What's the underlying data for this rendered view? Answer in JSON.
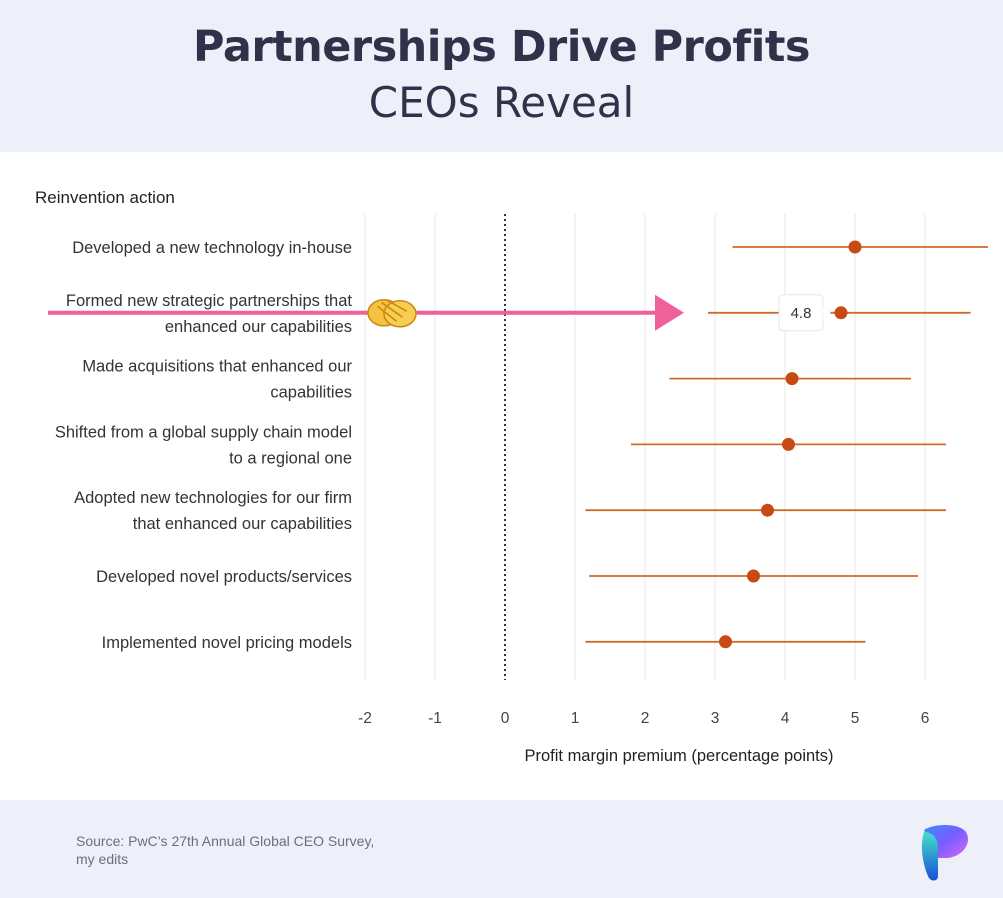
{
  "header": {
    "title": "Partnerships Drive Profits",
    "subtitle": "CEOs Reveal"
  },
  "footer": {
    "source_line1": "Source: PwC’s 27th Annual Global CEO Survey,",
    "source_line2": "my edits"
  },
  "annotation": {
    "callout_value": "4.8",
    "highlight_icon": "handshake-icon",
    "arrow_color": "#f0609a"
  },
  "colors": {
    "point": "#c84a12",
    "error_bar": "#d06a2a",
    "header_bg": "#eef0f9",
    "title": "#30324a"
  },
  "chart_data": {
    "type": "scatter",
    "subtype": "dot-and-whisker",
    "title": "",
    "category_axis_title": "Reinvention action",
    "xlabel": "Profit margin premium (percentage points)",
    "xlim": [
      -2,
      6.9
    ],
    "xticks": [
      -2,
      -1,
      0,
      1,
      2,
      3,
      4,
      5,
      6
    ],
    "reference_line": 0,
    "grid": "vertical",
    "categories": [
      [
        "Developed a new technology in-house"
      ],
      [
        "Formed new strategic partnerships that",
        "enhanced our capabilities"
      ],
      [
        "Made acquisitions that enhanced our",
        "capabilities"
      ],
      [
        "Shifted from a global supply chain model",
        "to a regional one"
      ],
      [
        "Adopted new technologies for our firm",
        "that enhanced our capabilities"
      ],
      [
        "Developed novel products/services"
      ],
      [
        "Implemented novel pricing models"
      ]
    ],
    "values": [
      5.0,
      4.8,
      4.1,
      4.05,
      3.75,
      3.55,
      3.15
    ],
    "ci_low": [
      3.25,
      2.9,
      2.35,
      1.8,
      1.15,
      1.2,
      1.15
    ],
    "ci_high": [
      6.9,
      6.65,
      5.8,
      6.3,
      6.3,
      5.9,
      5.15
    ]
  }
}
